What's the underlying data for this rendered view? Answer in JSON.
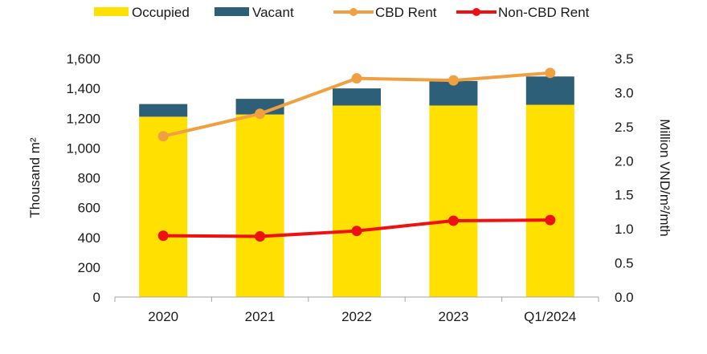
{
  "chart_data": {
    "type": "bar",
    "categories": [
      "2020",
      "2021",
      "2022",
      "2023",
      "Q1/2024"
    ],
    "stacked": true,
    "series": [
      {
        "name": "Occupied",
        "type": "bar",
        "axis": "left",
        "color": "#FFE000",
        "values": [
          1210,
          1225,
          1285,
          1285,
          1290
        ]
      },
      {
        "name": "Vacant",
        "type": "bar",
        "axis": "left",
        "color": "#2E5F78",
        "values": [
          85,
          105,
          115,
          165,
          190
        ]
      },
      {
        "name": "CBD Rent",
        "type": "line",
        "axis": "right",
        "color": "#F0A040",
        "values": [
          2.36,
          2.69,
          3.21,
          3.18,
          3.29
        ]
      },
      {
        "name": "Non-CBD Rent",
        "type": "line",
        "axis": "right",
        "color": "#EE1111",
        "values": [
          0.9,
          0.89,
          0.97,
          1.12,
          1.13
        ]
      }
    ],
    "ylabel": "Thousand m²",
    "y2label": "Million VND/m²/mth",
    "ylim": [
      0,
      1600
    ],
    "y2lim": [
      0,
      3.5
    ],
    "yticks": [
      "0",
      "200",
      "400",
      "600",
      "800",
      "1,000",
      "1,200",
      "1,400",
      "1,600"
    ],
    "y2ticks": [
      "0.0",
      "0.5",
      "1.0",
      "1.5",
      "2.0",
      "2.5",
      "3.0",
      "3.5"
    ],
    "legend_position": "top",
    "grid": false
  }
}
